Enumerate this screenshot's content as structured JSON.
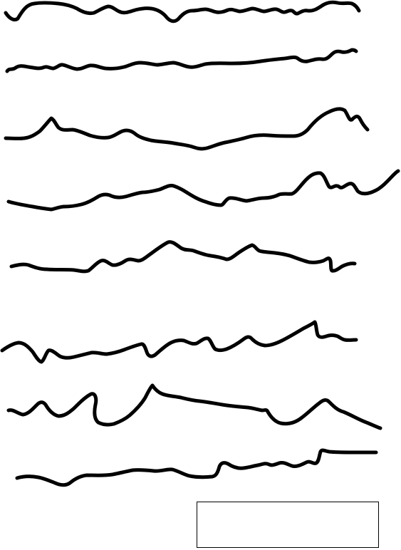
{
  "canvas": {
    "background_color": "#ffffff",
    "stroke_color": "#000000",
    "squiggle_count": 8
  },
  "answer_box": {
    "border_color": "#000000",
    "fill_color": "#ffffff",
    "text": ""
  }
}
